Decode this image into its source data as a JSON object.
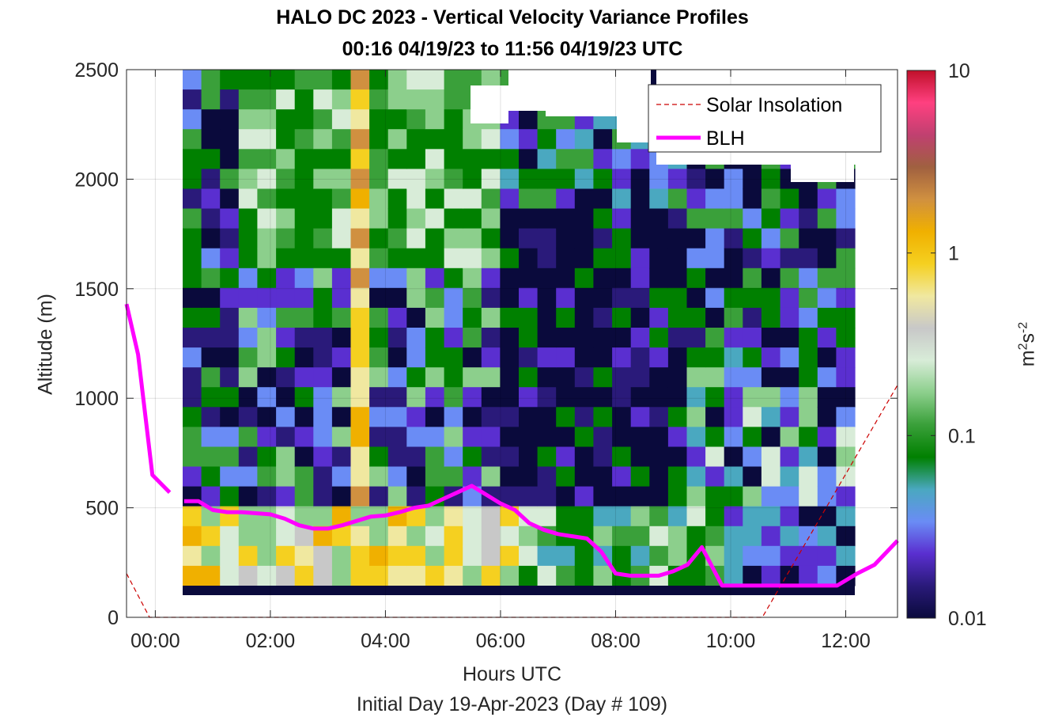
{
  "chart_data": {
    "type": "heatmap",
    "title": "HALO DC 2023 - Vertical Velocity Variance Profiles",
    "subtitle": "00:16 04/19/23 to 11:56 04/19/23  UTC",
    "xlabel": "Hours UTC",
    "xlabel_sub": "Initial Day 19-Apr-2023 (Day # 109)",
    "ylabel": "Altitude (m)",
    "colorbar": {
      "label_base": "m",
      "label_sup1": "2",
      "label_mid": "s",
      "label_sup2": "-2",
      "scale": "log",
      "range": [
        0.01,
        10
      ],
      "ticks": [
        "0.01",
        "0.1",
        "1",
        "10"
      ],
      "colormap": [
        "#0a0a3c",
        "#2a1a7a",
        "#5a2fd0",
        "#6a8cf5",
        "#4aa8c0",
        "#008000",
        "#3aa03a",
        "#8ccf8c",
        "#d8ecd8",
        "#c8c8c8",
        "#f0e8a0",
        "#f5d020",
        "#f0b000",
        "#d09040",
        "#a06040",
        "#c04070",
        "#ff4080",
        "#c0102a"
      ]
    },
    "x_ticks": [
      "00:00",
      "02:00",
      "04:00",
      "06:00",
      "08:00",
      "10:00",
      "12:00"
    ],
    "x_tick_hours": [
      0,
      2,
      4,
      6,
      8,
      10,
      12
    ],
    "xlim_hours": [
      -0.5,
      12.9
    ],
    "y_ticks": [
      "0",
      "500",
      "1000",
      "1500",
      "2000",
      "2500"
    ],
    "y_tick_values": [
      0,
      500,
      1000,
      1500,
      2000,
      2500
    ],
    "ylim": [
      0,
      2500
    ],
    "grid": true,
    "legend_position": "top-right",
    "series": [
      {
        "name": "Solar Insolation",
        "style": "dashed",
        "color": "#cc0000",
        "x": [
          -0.5,
          -0.1,
          10.55,
          12.9
        ],
        "y": [
          200,
          0,
          0,
          1060
        ]
      },
      {
        "name": "BLH",
        "style": "solid",
        "color": "#ff00ff",
        "segments": [
          {
            "x": [
              -0.5,
              -0.3,
              -0.05,
              0.25
            ],
            "y": [
              1430,
              1200,
              650,
              570
            ]
          },
          {
            "x": [
              0.5,
              0.75,
              1.0,
              1.25,
              1.5,
              1.75,
              2.0,
              2.25,
              2.5,
              2.75,
              3.0,
              3.25,
              3.5,
              3.75,
              4.0,
              4.25,
              4.5,
              4.75,
              5.0,
              5.25,
              5.5,
              5.75,
              6.0,
              6.25,
              6.5,
              6.75,
              7.0,
              7.25,
              7.5,
              7.75,
              8.0,
              8.25,
              8.5,
              8.75,
              9.0,
              9.25,
              9.5,
              9.85,
              10.2,
              10.5,
              10.8,
              11.1,
              11.5,
              11.85,
              12.2,
              12.5,
              12.9
            ],
            "y": [
              530,
              530,
              490,
              480,
              480,
              475,
              470,
              450,
              420,
              405,
              405,
              420,
              440,
              460,
              465,
              480,
              500,
              510,
              540,
              570,
              600,
              560,
              520,
              490,
              430,
              400,
              380,
              370,
              360,
              300,
              200,
              190,
              190,
              190,
              210,
              240,
              320,
              145,
              145,
              145,
              145,
              145,
              145,
              145,
              200,
              240,
              350
            ]
          }
        ]
      }
    ]
  }
}
